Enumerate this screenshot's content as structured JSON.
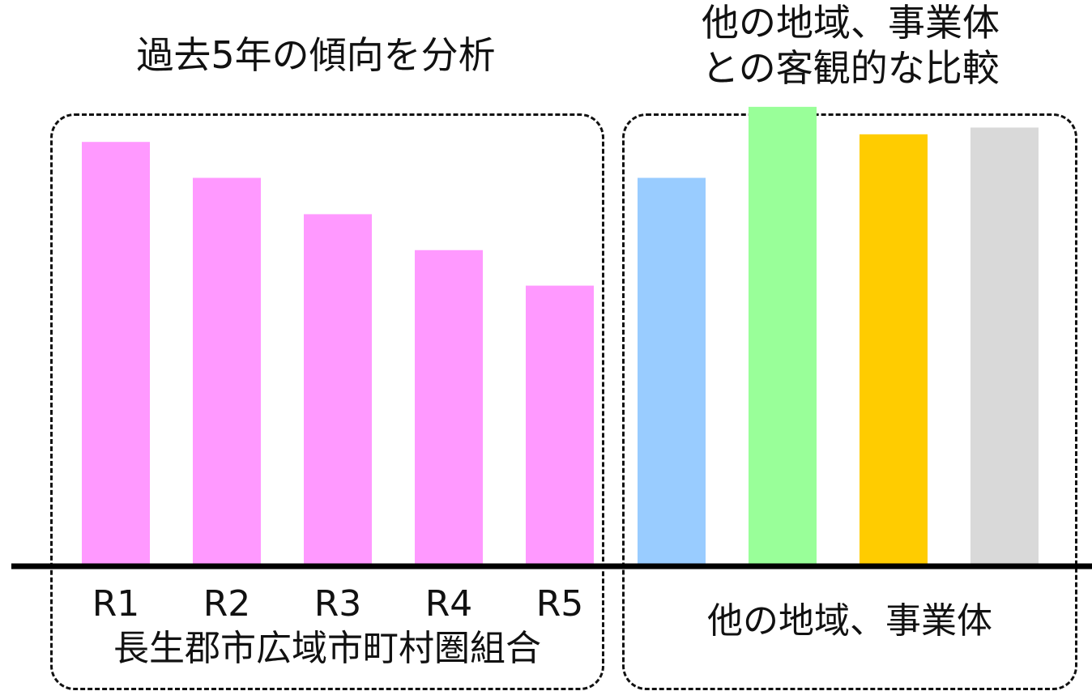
{
  "titles": {
    "left": "過去5年の傾向を分析",
    "right_line1": "他の地域、事業体",
    "right_line2": "との客観的な比較"
  },
  "captions": {
    "left": "長生郡市広域市町村圏組合",
    "right": "他の地域、事業体"
  },
  "chart_data": [
    {
      "type": "bar",
      "categories": [
        "R1",
        "R2",
        "R3",
        "R4",
        "R5"
      ],
      "values": [
        100,
        91.5,
        82.9,
        74.4,
        66.0
      ],
      "colors": [
        "#ff99ff",
        "#ff99ff",
        "#ff99ff",
        "#ff99ff",
        "#ff99ff"
      ],
      "ylim": [
        0,
        110
      ],
      "grid": false
    },
    {
      "type": "bar",
      "categories": [
        "",
        "",
        "",
        ""
      ],
      "values": [
        91.5,
        108.3,
        101.8,
        103.4
      ],
      "colors": [
        "#99ccff",
        "#99ff99",
        "#ffcc00",
        "#d9d9d9"
      ],
      "ylim": [
        0,
        110
      ],
      "grid": false
    }
  ]
}
